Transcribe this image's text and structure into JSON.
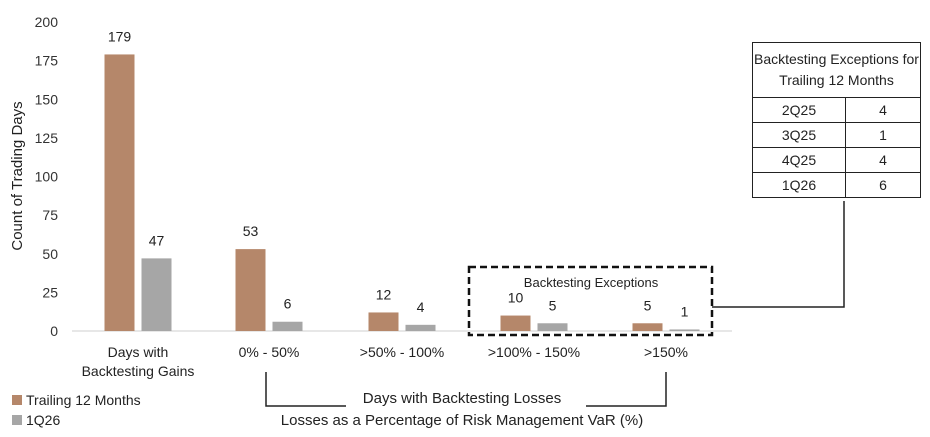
{
  "chart_data": {
    "type": "bar",
    "ylabel": "Count of Trading Days",
    "ylim": [
      0,
      200
    ],
    "yticks": [
      0,
      25,
      50,
      75,
      100,
      125,
      150,
      175,
      200
    ],
    "categories": [
      "Days with\nBacktesting Gains",
      "0% - 50%",
      ">50% - 100%",
      ">100% - 150%",
      ">150%"
    ],
    "series": [
      {
        "name": "Trailing 12 Months",
        "color": "#b5876a",
        "values": [
          179,
          53,
          12,
          10,
          5
        ]
      },
      {
        "name": "1Q26",
        "color": "#a6a6a6",
        "values": [
          47,
          6,
          4,
          5,
          1
        ]
      }
    ],
    "annotations": {
      "backtesting_exceptions": "Backtesting Exceptions",
      "losses_title": "Days with Backtesting Losses",
      "xlabel": "Losses as a Percentage of Risk Management VaR (%)"
    }
  },
  "exceptions_table": {
    "header": "Backtesting Exceptions for Trailing 12 Months",
    "rows": [
      {
        "quarter": "2Q25",
        "count": "4"
      },
      {
        "quarter": "3Q25",
        "count": "1"
      },
      {
        "quarter": "4Q25",
        "count": "4"
      },
      {
        "quarter": "1Q26",
        "count": "6"
      }
    ]
  },
  "legend": {
    "items": [
      {
        "label": "Trailing 12 Months",
        "color": "#b5876a"
      },
      {
        "label": "1Q26",
        "color": "#a6a6a6"
      }
    ]
  }
}
